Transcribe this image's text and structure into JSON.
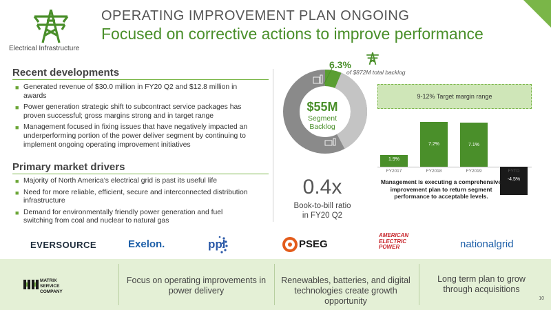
{
  "header": {
    "pretitle": "OPERATING IMPROVEMENT PLAN ONGOING",
    "title": "Focused on corrective actions to improve performance",
    "segment_label": "Electrical Infrastructure",
    "segment_icon": "transmission-tower-icon",
    "accent_color": "#4a8f2a"
  },
  "recent": {
    "title": "Recent developments",
    "items": [
      "Generated revenue of $30.0 million in FY20 Q2 and $12.8 million in awards",
      "Power generation strategic shift to subcontract service packages has proven successful; gross margins strong and in target range",
      "Management focused in fixing issues that have negatively impacted an underperforming portion of the power deliver segment by continuing to implement ongoing operating improvement initiatives"
    ]
  },
  "drivers": {
    "title": "Primary market drivers",
    "items": [
      "Majority of North America’s electrical grid is past its useful life",
      "Need for more reliable, efficient, secure and interconnected distribution infrastructure",
      "Demand for environmentally friendly power generation and fuel switching from coal and nuclear to natural gas"
    ]
  },
  "backlog": {
    "value": "$55M",
    "label1": "Segment",
    "label2": "Backlog",
    "pct": "6.3%",
    "pct_sub": "of $872M total backlog",
    "share": 0.063
  },
  "ratio": {
    "value": "0.4x",
    "label1": "Book-to-bill ratio",
    "label2": "in FY20 Q2"
  },
  "chart_data": {
    "type": "bar",
    "categories": [
      "FY2017",
      "FY2018",
      "FY2019",
      "FYTD"
    ],
    "values": [
      1.9,
      7.2,
      7.1,
      -4.5
    ],
    "value_labels": [
      "1.9%",
      "7.2%",
      "7.1%",
      "-4.5%"
    ],
    "colors": [
      "#4a8f2a",
      "#4a8f2a",
      "#4a8f2a",
      "#1a1a1a"
    ],
    "target_band": "9-12% Target margin range",
    "note": "Management is executing a comprehensive improvement plan to return segment performance to acceptable levels."
  },
  "customers": [
    "EVERSOURCE",
    "Exelon.",
    "ppl",
    "PSEG",
    "AMERICAN ELECTRIC POWER",
    "nationalgrid"
  ],
  "footer": {
    "company": "MATRIX SERVICE COMPANY",
    "points": [
      "Focus on operating improvements in power delivery",
      "Renewables, batteries, and digital technologies create growth opportunity",
      "Long term plan to grow through acquisitions"
    ]
  },
  "page_number": "10"
}
